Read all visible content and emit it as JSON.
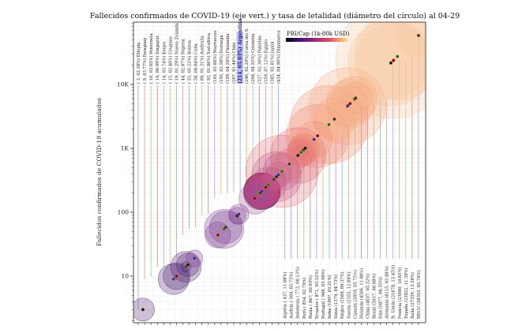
{
  "chart_data": {
    "type": "scatter",
    "title": "Fallecidos confirmados de COVID-19 (eje vert.) y tasa de letalidad (diámetro del círculo) al 04-29",
    "xlabel": "",
    "ylabel": "Fallecidos confirmados de COVID-19 acumulados",
    "yscale": "log",
    "ylim": [
      2,
      80000
    ],
    "yticks": [
      {
        "value": 10,
        "label": "10"
      },
      {
        "value": 100,
        "label": "100"
      },
      {
        "value": 1000,
        "label": "1K"
      },
      {
        "value": 10000,
        "label": "10K"
      }
    ],
    "grid": true,
    "colorbar": {
      "title": "PBI/Cap (1k-80k USD)",
      "placement": "top-center",
      "colors": [
        "#000004",
        "#3b0f70",
        "#8c2981",
        "#de4968",
        "#fe9f6d",
        "#fcfdbf"
      ]
    },
    "highlight": "Argentina",
    "points_low": [
      {
        "country": "Etiopía",
        "deaths": 3,
        "rate": 2.38,
        "label": "( 3, 02.38%) Etiopía"
      },
      {
        "country": "Paraguay",
        "deaths": 9,
        "rate": 3.77,
        "label": "( 9, 03.77%) Paraguay"
      },
      {
        "country": "Venezuela",
        "deaths": 10,
        "rate": 3.05,
        "label": "( 10, 03.05%) Venezuela"
      },
      {
        "country": "Singapur",
        "deaths": 14,
        "rate": 0.09,
        "label": "( 14, 00.09%) Singapur"
      },
      {
        "country": "Kenya",
        "deaths": 14,
        "rate": 3.74,
        "label": "( 14, 03.74%) Kenya"
      },
      {
        "country": "Uruguay",
        "deaths": 15,
        "rate": 2.4,
        "label": "( 15, 02.40%) Uruguay"
      },
      {
        "country": "Nueva Zelanda",
        "deaths": 19,
        "rate": 1.29,
        "label": "( 19, 01.29%) Nueva Zelanda"
      },
      {
        "country": "Nigeria",
        "deaths": 44,
        "rate": 2.87,
        "label": "( 44, 02.87%) Nigeria"
      },
      {
        "country": "Bolivia",
        "deaths": 55,
        "rate": 5.22,
        "label": "( 55, 05.22%) Bolivia"
      },
      {
        "country": "Cuba",
        "deaths": 58,
        "rate": 4.04,
        "label": "( 58, 04.04%) Cuba"
      },
      {
        "country": "Australia",
        "deaths": 88,
        "rate": 1.31,
        "label": "( 88, 01.31%) Australia"
      },
      {
        "country": "Sud-áfrica",
        "deaths": 93,
        "rate": 1.86,
        "label": "( 93, 01.86%) Sud-áfrica"
      },
      {
        "country": "Marruecos",
        "deaths": 165,
        "rate": 3.88,
        "label": "(165, 03.88%) Marruecos"
      },
      {
        "country": "Noruega",
        "deaths": 195,
        "rate": 2.58,
        "label": "(195, 02.58%) Noruega"
      },
      {
        "country": "Finlandia",
        "deaths": 199,
        "rate": 4.2,
        "label": "(199, 04.20%) Finlandia"
      },
      {
        "country": "Chile",
        "deaths": 207,
        "rate": 1.44,
        "label": "(207, 01.44%) Chile"
      },
      {
        "country": "Argentina",
        "deaths": 214,
        "rate": 5.03,
        "label": "(214, 05.03%) Argentina"
      },
      {
        "country": "Corea del S.",
        "deaths": 246,
        "rate": 2.29,
        "label": "(246, 02.29%) Corea del S."
      },
      {
        "country": "Colombia",
        "deaths": 268,
        "rate": 4.55,
        "label": "(268, 04.55%) Colombia"
      },
      {
        "country": "Pakistán",
        "deaths": 327,
        "rate": 2.3,
        "label": "(327, 02.30%) Pakistán"
      },
      {
        "country": "Egipto",
        "deaths": 359,
        "rate": 7.12,
        "label": "(359, 07.12%) Egipto"
      },
      {
        "country": "Japón",
        "deaths": 385,
        "rate": 2.81,
        "label": "(385, 02.81%) Japón"
      },
      {
        "country": "Dinamarca",
        "deaths": 434,
        "rate": 4.9,
        "label": "(434, 04.90%) Dinamarca"
      }
    ],
    "points_high": [
      {
        "country": "Algeria",
        "deaths": 437,
        "rate": 11.08,
        "label": "Algeria ( 437, 11.08%)"
      },
      {
        "country": "Austria",
        "deaths": 569,
        "rate": 3.73,
        "label": "Austria ( 569, 03.73%)"
      },
      {
        "country": "Indonesia",
        "deaths": 773,
        "rate": 8.13,
        "label": "Indonesia ( 773, 08.13%)"
      },
      {
        "country": "Perú",
        "deaths": 854,
        "rate": 2.79,
        "label": "Perú ( 854, 02.79%)"
      },
      {
        "country": "Rusia",
        "deaths": 867,
        "rate": 0.93,
        "label": "Rusia ( 867, 00.93%)"
      },
      {
        "country": "Ecuador",
        "deaths": 871,
        "rate": 3.52,
        "label": "Ecuador ( 871, 03.52%)"
      },
      {
        "country": "Portugal",
        "deaths": 948,
        "rate": 3.9,
        "label": "Portugal ( 948, 03.90%)"
      },
      {
        "country": "India",
        "deaths": 1007,
        "rate": 3.21,
        "label": "India (1007, 03.21%)"
      },
      {
        "country": "Suiza",
        "deaths": 1379,
        "rate": 4.73,
        "label": "Suiza (1379, 04.73%)"
      },
      {
        "country": "Méjico",
        "deaths": 1569,
        "rate": 9.37,
        "label": "Méjico (1569, 09.37%)"
      },
      {
        "country": "Suecia",
        "deaths": 2355,
        "rate": 12.08,
        "label": "Suecia (2355, 12.08%)"
      },
      {
        "country": "Canadá",
        "deaths": 2859,
        "rate": 5.75,
        "label": "Canadá (2859, 05.75%)"
      },
      {
        "country": "Holanda",
        "deaths": 4566,
        "rate": 11.88,
        "label": "Holanda (4566, 11.88%)"
      },
      {
        "country": "China",
        "deaths": 4637,
        "rate": 5.52,
        "label": "China (4637, 05.52%)"
      },
      {
        "country": "Brasil",
        "deaths": 5017,
        "rate": 6.88,
        "label": "Brasil (5017, 06.88%)"
      },
      {
        "country": "Irán",
        "deaths": 5877,
        "rate": 6.35,
        "label": "Irán (5877, 06.35%)"
      },
      {
        "country": "Alemania",
        "deaths": 6115,
        "rate": 3.88,
        "label": "Alemania (6115, 03.88%)"
      },
      {
        "country": "R. Unido",
        "deaths": 21678,
        "rate": 13.45,
        "label": "R. Unido (21678, 13.45%)"
      },
      {
        "country": "Francia",
        "deaths": 23660,
        "rate": 18.65,
        "label": "Francia (23660, 18.65%)"
      },
      {
        "country": "España",
        "deaths": 23822,
        "rate": 11.38,
        "label": "España (23822, 11.38%)"
      },
      {
        "country": "Italia",
        "deaths": 27359,
        "rate": 13.58,
        "label": "Italia (27359, 13.58%)"
      },
      {
        "country": "EEUU",
        "deaths": 58355,
        "rate": 5.76,
        "label": "EEUU (58355, 05.76%)"
      }
    ]
  }
}
